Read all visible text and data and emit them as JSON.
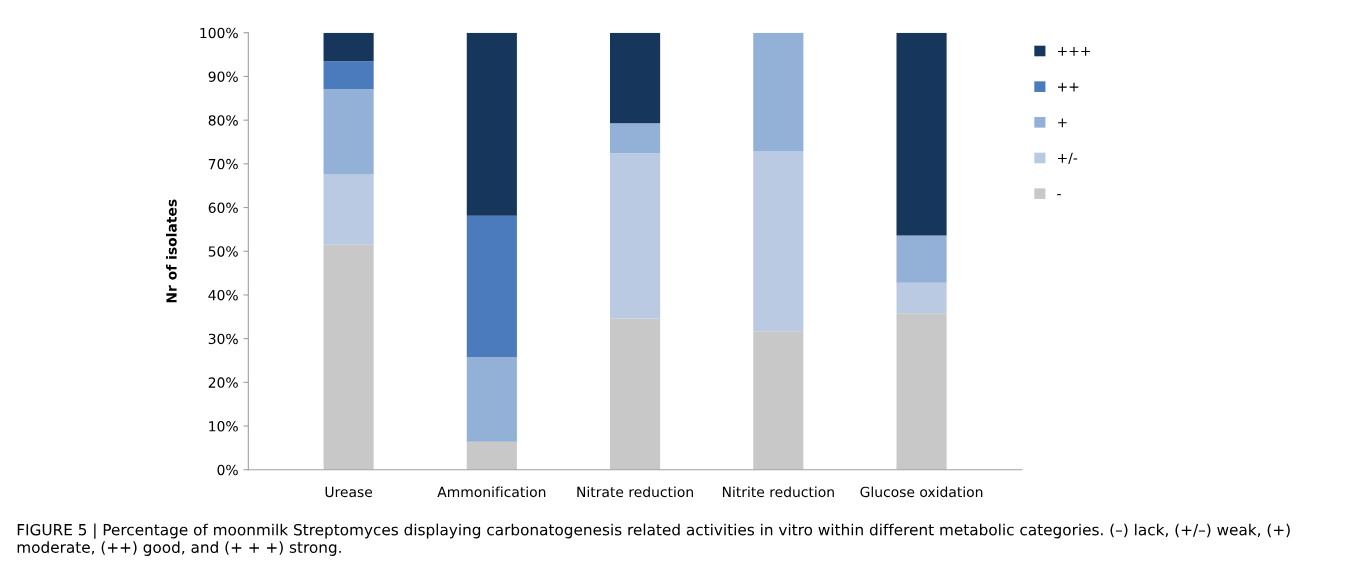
{
  "chart_data": {
    "type": "bar",
    "stacked": true,
    "ylabel": "Nr of isolates",
    "categories": [
      "Urease",
      "Ammonification",
      "Nitrate reduction",
      "Nitrite reduction",
      "Glucose oxidation"
    ],
    "series": [
      {
        "name": "-",
        "color": "#c8c8c8",
        "values": [
          51.5,
          6.4,
          34.6,
          31.7,
          35.8
        ]
      },
      {
        "name": "+/-",
        "color": "#b9cae2",
        "values": [
          16.2,
          0,
          37.8,
          41.1,
          7.0
        ]
      },
      {
        "name": "+",
        "color": "#93b0d7",
        "values": [
          19.4,
          19.4,
          6.9,
          27.2,
          10.8
        ]
      },
      {
        "name": "++",
        "color": "#4b7bbd",
        "values": [
          6.4,
          32.3,
          0,
          0,
          0
        ]
      },
      {
        "name": "+++",
        "color": "#16375b",
        "values": [
          6.5,
          41.9,
          20.7,
          0,
          46.4
        ]
      }
    ],
    "ylim": [
      0,
      100
    ],
    "yticks": [
      {
        "value": 0,
        "label": "0%"
      },
      {
        "value": 10,
        "label": "10%"
      },
      {
        "value": 20,
        "label": "20%"
      },
      {
        "value": 30,
        "label": "30%"
      },
      {
        "value": 40,
        "label": "40%"
      },
      {
        "value": 50,
        "label": "50%"
      },
      {
        "value": 60,
        "label": "60%"
      },
      {
        "value": 70,
        "label": "70%"
      },
      {
        "value": 80,
        "label": "80%"
      },
      {
        "value": 90,
        "label": "90%"
      },
      {
        "value": 100,
        "label": "100%"
      }
    ],
    "grid": false,
    "legend": "right",
    "annotations": [
      "FIGURE 5 | Percentage of moonmilk Streptomyces displaying carbonatogenesis related activities in vitro within different metabolic categories. (–) lack, (+/–) weak, (+) moderate, (++) good, and (+ + +) strong."
    ]
  }
}
